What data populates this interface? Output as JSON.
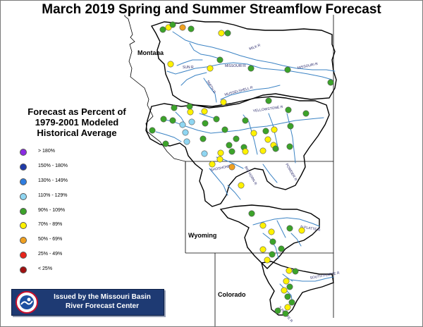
{
  "title": "March 2019 Spring and Summer Streamflow Forecast",
  "states": [
    "Montana",
    "Wyoming",
    "Colorado"
  ],
  "rivers": [
    "MILK R",
    "MISSOURI R",
    "SUN R",
    "MISSOURI R",
    "SMITH R",
    "MUSSELSHELL R",
    "YELLOWSTONE R",
    "POWDER R",
    "BIG HORN R",
    "SHOSHONE R",
    "N PLATTE R",
    "SOUTH PLATTE R",
    "S PLATTE R"
  ],
  "legend": {
    "title_lines": [
      "Forecast as Percent of",
      "1979-2001 Modeled",
      "Historical Average"
    ],
    "items": [
      {
        "label": "> 180%",
        "color": "#8a2be2"
      },
      {
        "label": "150% - 180%",
        "color": "#1f3aa8"
      },
      {
        "label": "130% - 149%",
        "color": "#2f7de0"
      },
      {
        "label": "110% - 129%",
        "color": "#8fd6f2"
      },
      {
        "label": "90% - 109%",
        "color": "#3ca32a"
      },
      {
        "label": "70% - 89%",
        "color": "#fff200"
      },
      {
        "label": "50% - 69%",
        "color": "#f0a020"
      },
      {
        "label": "25% - 49%",
        "color": "#e8241b"
      },
      {
        "label": "< 25%",
        "color": "#a01010"
      }
    ]
  },
  "badge": {
    "line1": "Issued by the Missouri Basin",
    "line2": "River Forecast Center",
    "logo": "nws-logo-icon"
  },
  "points": [
    {
      "lon": 238,
      "lat": 38,
      "cat": "70% - 89%"
    },
    {
      "lon": 244,
      "lat": 34,
      "cat": "90% - 109%"
    },
    {
      "lon": 230,
      "lat": 41,
      "cat": "90% - 109%"
    },
    {
      "lon": 258,
      "lat": 38,
      "cat": "50% - 69%"
    },
    {
      "lon": 270,
      "lat": 40,
      "cat": "90% - 109%"
    },
    {
      "lon": 313,
      "lat": 46,
      "cat": "70% - 89%"
    },
    {
      "lon": 322,
      "lat": 46,
      "cat": "90% - 109%"
    },
    {
      "lon": 241,
      "lat": 90,
      "cat": "70% - 89%"
    },
    {
      "lon": 311,
      "lat": 84,
      "cat": "90% - 109%"
    },
    {
      "lon": 297,
      "lat": 96,
      "cat": "70% - 89%"
    },
    {
      "lon": 355,
      "lat": 96,
      "cat": "90% - 109%"
    },
    {
      "lon": 407,
      "lat": 98,
      "cat": "90% - 109%"
    },
    {
      "lon": 468,
      "lat": 116,
      "cat": "90% - 109%"
    },
    {
      "lon": 316,
      "lat": 144,
      "cat": "70% - 89%"
    },
    {
      "lon": 380,
      "lat": 142,
      "cat": "90% - 109%"
    },
    {
      "lon": 246,
      "lat": 152,
      "cat": "90% - 109%"
    },
    {
      "lon": 268,
      "lat": 150,
      "cat": "90% - 109%"
    },
    {
      "lon": 269,
      "lat": 158,
      "cat": "70% - 89%"
    },
    {
      "lon": 289,
      "lat": 157,
      "cat": "70% - 89%"
    },
    {
      "lon": 408,
      "lat": 155,
      "cat": "90% - 109%"
    },
    {
      "lon": 433,
      "lat": 160,
      "cat": "90% - 109%"
    },
    {
      "lon": 231,
      "lat": 168,
      "cat": "90% - 109%"
    },
    {
      "lon": 244,
      "lat": 170,
      "cat": "90% - 109%"
    },
    {
      "lon": 258,
      "lat": 176,
      "cat": "110% - 129%"
    },
    {
      "lon": 271,
      "lat": 172,
      "cat": "110% - 129%"
    },
    {
      "lon": 290,
      "lat": 174,
      "cat": "90% - 109%"
    },
    {
      "lon": 306,
      "lat": 168,
      "cat": "90% - 109%"
    },
    {
      "lon": 318,
      "lat": 183,
      "cat": "90% - 109%"
    },
    {
      "lon": 347,
      "lat": 170,
      "cat": "90% - 109%"
    },
    {
      "lon": 359,
      "lat": 188,
      "cat": "70% - 89%"
    },
    {
      "lon": 376,
      "lat": 185,
      "cat": "90% - 109%"
    },
    {
      "lon": 388,
      "lat": 183,
      "cat": "70% - 89%"
    },
    {
      "lon": 411,
      "lat": 178,
      "cat": "90% - 109%"
    },
    {
      "lon": 215,
      "lat": 184,
      "cat": "90% - 109%"
    },
    {
      "lon": 262,
      "lat": 187,
      "cat": "110% - 129%"
    },
    {
      "lon": 287,
      "lat": 196,
      "cat": "90% - 109%"
    },
    {
      "lon": 334,
      "lat": 196,
      "cat": "90% - 109%"
    },
    {
      "lon": 379,
      "lat": 197,
      "cat": "70% - 89%"
    },
    {
      "lon": 387,
      "lat": 205,
      "cat": "70% - 89%"
    },
    {
      "lon": 390,
      "lat": 210,
      "cat": "90% - 109%"
    },
    {
      "lon": 410,
      "lat": 207,
      "cat": "90% - 109%"
    },
    {
      "lon": 234,
      "lat": 203,
      "cat": "90% - 109%"
    },
    {
      "lon": 264,
      "lat": 200,
      "cat": "110% - 129%"
    },
    {
      "lon": 324,
      "lat": 205,
      "cat": "90% - 109%"
    },
    {
      "lon": 345,
      "lat": 208,
      "cat": "90% - 109%"
    },
    {
      "lon": 289,
      "lat": 217,
      "cat": "110% - 129%"
    },
    {
      "lon": 312,
      "lat": 216,
      "cat": "70% - 89%"
    },
    {
      "lon": 328,
      "lat": 214,
      "cat": "90% - 109%"
    },
    {
      "lon": 347,
      "lat": 214,
      "cat": "70% - 89%"
    },
    {
      "lon": 372,
      "lat": 213,
      "cat": "70% - 89%"
    },
    {
      "lon": 311,
      "lat": 225,
      "cat": "70% - 89%"
    },
    {
      "lon": 300,
      "lat": 232,
      "cat": "70% - 89%"
    },
    {
      "lon": 328,
      "lat": 236,
      "cat": "50% - 69%"
    },
    {
      "lon": 341,
      "lat": 262,
      "cat": "70% - 89%"
    },
    {
      "lon": 356,
      "lat": 302,
      "cat": "90% - 109%"
    },
    {
      "lon": 372,
      "lat": 319,
      "cat": "70% - 89%"
    },
    {
      "lon": 384,
      "lat": 328,
      "cat": "70% - 89%"
    },
    {
      "lon": 410,
      "lat": 323,
      "cat": "90% - 109%"
    },
    {
      "lon": 427,
      "lat": 326,
      "cat": "70% - 89%"
    },
    {
      "lon": 386,
      "lat": 342,
      "cat": "90% - 109%"
    },
    {
      "lon": 372,
      "lat": 353,
      "cat": "70% - 89%"
    },
    {
      "lon": 398,
      "lat": 352,
      "cat": "90% - 109%"
    },
    {
      "lon": 385,
      "lat": 360,
      "cat": "90% - 109%"
    },
    {
      "lon": 378,
      "lat": 368,
      "cat": "70% - 89%"
    },
    {
      "lon": 409,
      "lat": 383,
      "cat": "70% - 89%"
    },
    {
      "lon": 418,
      "lat": 384,
      "cat": "90% - 109%"
    },
    {
      "lon": 405,
      "lat": 398,
      "cat": "70% - 89%"
    },
    {
      "lon": 410,
      "lat": 406,
      "cat": "90% - 109%"
    },
    {
      "lon": 402,
      "lat": 411,
      "cat": "70% - 89%"
    },
    {
      "lon": 407,
      "lat": 420,
      "cat": "90% - 109%"
    },
    {
      "lon": 413,
      "lat": 428,
      "cat": "90% - 109%"
    },
    {
      "lon": 407,
      "lat": 435,
      "cat": "70% - 89%"
    },
    {
      "lon": 393,
      "lat": 440,
      "cat": "90% - 109%"
    },
    {
      "lon": 404,
      "lat": 444,
      "cat": "90% - 109%"
    }
  ]
}
